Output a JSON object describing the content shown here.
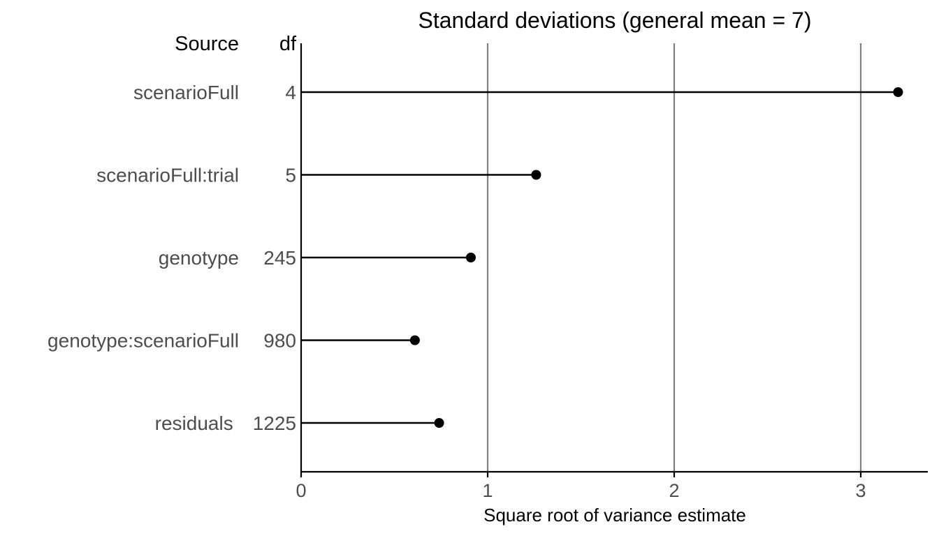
{
  "chart_data": {
    "type": "lollipop",
    "title": "Standard deviations (general mean = 7)",
    "xlabel": "Square root of variance estimate",
    "header_source": "Source",
    "header_df": "df",
    "xlim": [
      0,
      3.36
    ],
    "xticks": [
      0,
      1,
      2,
      3
    ],
    "grid": "vertical at major ticks",
    "categories": [
      "scenarioFull",
      "scenarioFull:trial",
      "genotype",
      "genotype:scenarioFull",
      "residuals"
    ],
    "df": [
      "4",
      "5",
      "245",
      "980",
      "1225"
    ],
    "values": [
      3.2,
      1.26,
      0.91,
      0.61,
      0.74
    ],
    "colors": {
      "point": "#000000",
      "grid": "#808080",
      "axis": "#000000"
    }
  }
}
